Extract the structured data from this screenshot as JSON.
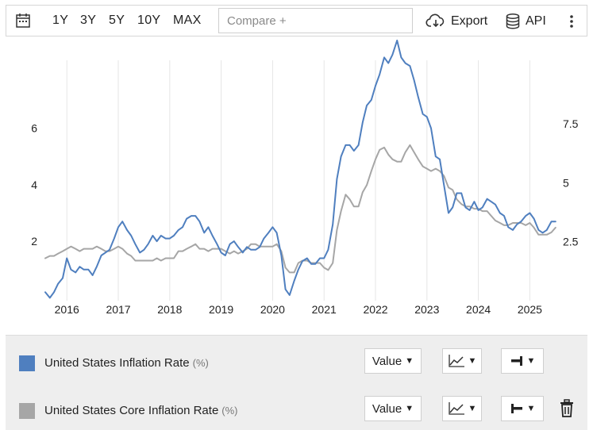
{
  "toolbar": {
    "ranges": [
      "1Y",
      "3Y",
      "5Y",
      "10Y",
      "MAX"
    ],
    "compare_placeholder": "Compare +",
    "export_label": "Export",
    "api_label": "API"
  },
  "legend": {
    "series": [
      {
        "name": "United States Inflation Rate",
        "unit": "(%)",
        "color": "#4f7fbf",
        "value_label": "Value"
      },
      {
        "name": "United States Core Inflation Rate",
        "unit": "(%)",
        "color": "#a6a6a6",
        "value_label": "Value"
      }
    ]
  },
  "chart_data": {
    "type": "line",
    "x_ticks": [
      "2016",
      "2017",
      "2018",
      "2019",
      "2020",
      "2021",
      "2022",
      "2023",
      "2024",
      "2025"
    ],
    "x_range": [
      2015.58,
      2025.58
    ],
    "left_axis": {
      "ticks": [
        "2",
        "4",
        "6"
      ],
      "range": [
        -0.1,
        8.4
      ]
    },
    "right_axis": {
      "ticks": [
        "2.5",
        "5",
        "7.5"
      ],
      "range": [
        0.0,
        10.2
      ]
    },
    "grid": "vertical",
    "series": [
      {
        "name": "United States Inflation Rate",
        "axis": "left",
        "color": "#4f7fbf",
        "points": [
          [
            2015.58,
            0.2
          ],
          [
            2015.67,
            0.0
          ],
          [
            2015.75,
            0.2
          ],
          [
            2015.83,
            0.5
          ],
          [
            2015.92,
            0.7
          ],
          [
            2016.0,
            1.4
          ],
          [
            2016.08,
            1.0
          ],
          [
            2016.17,
            0.9
          ],
          [
            2016.25,
            1.1
          ],
          [
            2016.33,
            1.0
          ],
          [
            2016.42,
            1.0
          ],
          [
            2016.5,
            0.8
          ],
          [
            2016.58,
            1.1
          ],
          [
            2016.67,
            1.5
          ],
          [
            2016.75,
            1.6
          ],
          [
            2016.83,
            1.7
          ],
          [
            2016.92,
            2.1
          ],
          [
            2017.0,
            2.5
          ],
          [
            2017.08,
            2.7
          ],
          [
            2017.17,
            2.4
          ],
          [
            2017.25,
            2.2
          ],
          [
            2017.33,
            1.9
          ],
          [
            2017.42,
            1.6
          ],
          [
            2017.5,
            1.7
          ],
          [
            2017.58,
            1.9
          ],
          [
            2017.67,
            2.2
          ],
          [
            2017.75,
            2.0
          ],
          [
            2017.83,
            2.2
          ],
          [
            2017.92,
            2.1
          ],
          [
            2018.0,
            2.1
          ],
          [
            2018.08,
            2.2
          ],
          [
            2018.17,
            2.4
          ],
          [
            2018.25,
            2.5
          ],
          [
            2018.33,
            2.8
          ],
          [
            2018.42,
            2.9
          ],
          [
            2018.5,
            2.9
          ],
          [
            2018.58,
            2.7
          ],
          [
            2018.67,
            2.3
          ],
          [
            2018.75,
            2.5
          ],
          [
            2018.83,
            2.2
          ],
          [
            2018.92,
            1.9
          ],
          [
            2019.0,
            1.6
          ],
          [
            2019.08,
            1.5
          ],
          [
            2019.17,
            1.9
          ],
          [
            2019.25,
            2.0
          ],
          [
            2019.33,
            1.8
          ],
          [
            2019.42,
            1.6
          ],
          [
            2019.5,
            1.8
          ],
          [
            2019.58,
            1.7
          ],
          [
            2019.67,
            1.7
          ],
          [
            2019.75,
            1.8
          ],
          [
            2019.83,
            2.1
          ],
          [
            2019.92,
            2.3
          ],
          [
            2020.0,
            2.5
          ],
          [
            2020.08,
            2.3
          ],
          [
            2020.17,
            1.5
          ],
          [
            2020.25,
            0.3
          ],
          [
            2020.33,
            0.1
          ],
          [
            2020.42,
            0.6
          ],
          [
            2020.5,
            1.0
          ],
          [
            2020.58,
            1.3
          ],
          [
            2020.67,
            1.4
          ],
          [
            2020.75,
            1.2
          ],
          [
            2020.83,
            1.2
          ],
          [
            2020.92,
            1.4
          ],
          [
            2021.0,
            1.4
          ],
          [
            2021.08,
            1.7
          ],
          [
            2021.17,
            2.6
          ],
          [
            2021.25,
            4.2
          ],
          [
            2021.33,
            5.0
          ],
          [
            2021.42,
            5.4
          ],
          [
            2021.5,
            5.4
          ],
          [
            2021.58,
            5.2
          ],
          [
            2021.67,
            5.4
          ],
          [
            2021.75,
            6.2
          ],
          [
            2021.83,
            6.8
          ],
          [
            2021.92,
            7.0
          ],
          [
            2022.0,
            7.5
          ],
          [
            2022.08,
            7.9
          ],
          [
            2022.17,
            8.5
          ],
          [
            2022.25,
            8.3
          ],
          [
            2022.33,
            8.6
          ],
          [
            2022.42,
            9.1
          ],
          [
            2022.5,
            8.5
          ],
          [
            2022.58,
            8.3
          ],
          [
            2022.67,
            8.2
          ],
          [
            2022.75,
            7.7
          ],
          [
            2022.83,
            7.1
          ],
          [
            2022.92,
            6.5
          ],
          [
            2023.0,
            6.4
          ],
          [
            2023.08,
            6.0
          ],
          [
            2023.17,
            5.0
          ],
          [
            2023.25,
            4.9
          ],
          [
            2023.33,
            4.0
          ],
          [
            2023.42,
            3.0
          ],
          [
            2023.5,
            3.2
          ],
          [
            2023.58,
            3.7
          ],
          [
            2023.67,
            3.7
          ],
          [
            2023.75,
            3.2
          ],
          [
            2023.83,
            3.1
          ],
          [
            2023.92,
            3.4
          ],
          [
            2024.0,
            3.1
          ],
          [
            2024.08,
            3.2
          ],
          [
            2024.17,
            3.5
          ],
          [
            2024.25,
            3.4
          ],
          [
            2024.33,
            3.3
          ],
          [
            2024.42,
            3.0
          ],
          [
            2024.5,
            2.9
          ],
          [
            2024.58,
            2.5
          ],
          [
            2024.67,
            2.4
          ],
          [
            2024.75,
            2.6
          ],
          [
            2024.83,
            2.7
          ],
          [
            2024.92,
            2.9
          ],
          [
            2025.0,
            3.0
          ],
          [
            2025.08,
            2.8
          ],
          [
            2025.17,
            2.4
          ],
          [
            2025.25,
            2.3
          ],
          [
            2025.33,
            2.4
          ],
          [
            2025.42,
            2.7
          ],
          [
            2025.5,
            2.7
          ]
        ]
      },
      {
        "name": "United States Core Inflation Rate",
        "axis": "right",
        "color": "#a6a6a6",
        "points": [
          [
            2015.58,
            1.8
          ],
          [
            2015.67,
            1.9
          ],
          [
            2015.75,
            1.9
          ],
          [
            2015.83,
            2.0
          ],
          [
            2015.92,
            2.1
          ],
          [
            2016.0,
            2.2
          ],
          [
            2016.08,
            2.3
          ],
          [
            2016.17,
            2.2
          ],
          [
            2016.25,
            2.1
          ],
          [
            2016.33,
            2.2
          ],
          [
            2016.42,
            2.2
          ],
          [
            2016.5,
            2.2
          ],
          [
            2016.58,
            2.3
          ],
          [
            2016.67,
            2.2
          ],
          [
            2016.75,
            2.1
          ],
          [
            2016.83,
            2.1
          ],
          [
            2016.92,
            2.2
          ],
          [
            2017.0,
            2.3
          ],
          [
            2017.08,
            2.2
          ],
          [
            2017.17,
            2.0
          ],
          [
            2017.25,
            1.9
          ],
          [
            2017.33,
            1.7
          ],
          [
            2017.42,
            1.7
          ],
          [
            2017.5,
            1.7
          ],
          [
            2017.58,
            1.7
          ],
          [
            2017.67,
            1.7
          ],
          [
            2017.75,
            1.8
          ],
          [
            2017.83,
            1.7
          ],
          [
            2017.92,
            1.8
          ],
          [
            2018.0,
            1.8
          ],
          [
            2018.08,
            1.8
          ],
          [
            2018.17,
            2.1
          ],
          [
            2018.25,
            2.1
          ],
          [
            2018.33,
            2.2
          ],
          [
            2018.42,
            2.3
          ],
          [
            2018.5,
            2.4
          ],
          [
            2018.58,
            2.2
          ],
          [
            2018.67,
            2.2
          ],
          [
            2018.75,
            2.1
          ],
          [
            2018.83,
            2.2
          ],
          [
            2018.92,
            2.2
          ],
          [
            2019.0,
            2.2
          ],
          [
            2019.08,
            2.1
          ],
          [
            2019.17,
            2.0
          ],
          [
            2019.25,
            2.1
          ],
          [
            2019.33,
            2.0
          ],
          [
            2019.42,
            2.1
          ],
          [
            2019.5,
            2.2
          ],
          [
            2019.58,
            2.4
          ],
          [
            2019.67,
            2.4
          ],
          [
            2019.75,
            2.3
          ],
          [
            2019.83,
            2.3
          ],
          [
            2019.92,
            2.3
          ],
          [
            2020.0,
            2.3
          ],
          [
            2020.08,
            2.4
          ],
          [
            2020.17,
            2.1
          ],
          [
            2020.25,
            1.4
          ],
          [
            2020.33,
            1.2
          ],
          [
            2020.42,
            1.2
          ],
          [
            2020.5,
            1.6
          ],
          [
            2020.58,
            1.7
          ],
          [
            2020.67,
            1.7
          ],
          [
            2020.75,
            1.6
          ],
          [
            2020.83,
            1.6
          ],
          [
            2020.92,
            1.6
          ],
          [
            2021.0,
            1.4
          ],
          [
            2021.08,
            1.3
          ],
          [
            2021.17,
            1.6
          ],
          [
            2021.25,
            3.0
          ],
          [
            2021.33,
            3.8
          ],
          [
            2021.42,
            4.5
          ],
          [
            2021.5,
            4.3
          ],
          [
            2021.58,
            4.0
          ],
          [
            2021.67,
            4.0
          ],
          [
            2021.75,
            4.6
          ],
          [
            2021.83,
            4.9
          ],
          [
            2021.92,
            5.5
          ],
          [
            2022.0,
            6.0
          ],
          [
            2022.08,
            6.4
          ],
          [
            2022.17,
            6.5
          ],
          [
            2022.25,
            6.2
          ],
          [
            2022.33,
            6.0
          ],
          [
            2022.42,
            5.9
          ],
          [
            2022.5,
            5.9
          ],
          [
            2022.58,
            6.3
          ],
          [
            2022.67,
            6.6
          ],
          [
            2022.75,
            6.3
          ],
          [
            2022.83,
            6.0
          ],
          [
            2022.92,
            5.7
          ],
          [
            2023.0,
            5.6
          ],
          [
            2023.08,
            5.5
          ],
          [
            2023.17,
            5.6
          ],
          [
            2023.25,
            5.5
          ],
          [
            2023.33,
            5.3
          ],
          [
            2023.42,
            4.8
          ],
          [
            2023.5,
            4.7
          ],
          [
            2023.58,
            4.3
          ],
          [
            2023.67,
            4.1
          ],
          [
            2023.75,
            4.0
          ],
          [
            2023.83,
            4.0
          ],
          [
            2023.92,
            3.9
          ],
          [
            2024.0,
            3.9
          ],
          [
            2024.08,
            3.8
          ],
          [
            2024.17,
            3.8
          ],
          [
            2024.25,
            3.6
          ],
          [
            2024.33,
            3.4
          ],
          [
            2024.42,
            3.3
          ],
          [
            2024.5,
            3.2
          ],
          [
            2024.58,
            3.2
          ],
          [
            2024.67,
            3.3
          ],
          [
            2024.75,
            3.3
          ],
          [
            2024.83,
            3.3
          ],
          [
            2024.92,
            3.2
          ],
          [
            2025.0,
            3.3
          ],
          [
            2025.08,
            3.1
          ],
          [
            2025.17,
            2.8
          ],
          [
            2025.25,
            2.8
          ],
          [
            2025.33,
            2.8
          ],
          [
            2025.42,
            2.9
          ],
          [
            2025.5,
            3.1
          ]
        ]
      }
    ]
  }
}
